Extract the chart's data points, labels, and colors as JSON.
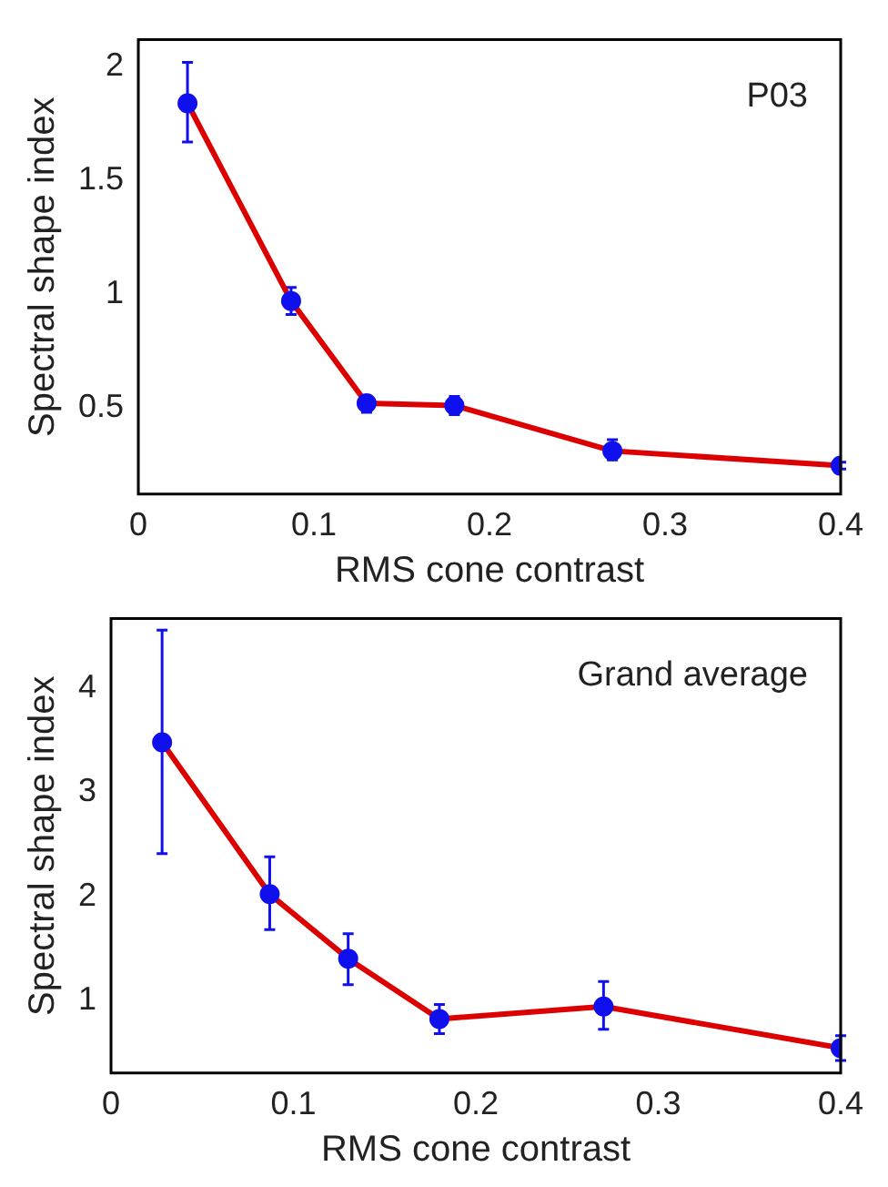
{
  "chart_data": [
    {
      "type": "line",
      "xlabel": "RMS cone contrast",
      "ylabel": "Spectral shape index",
      "annotations": [
        "P03"
      ],
      "x": [
        0.028,
        0.087,
        0.13,
        0.18,
        0.27,
        0.4
      ],
      "xlim": [
        0,
        0.4
      ],
      "xticks": [
        0,
        0.1,
        0.2,
        0.3,
        0.4
      ],
      "ylim": [
        0.12,
        2.12
      ],
      "yticks": [
        0.5,
        1,
        1.5,
        2
      ],
      "marker": "circle",
      "legend": false,
      "series": [
        {
          "color": "#dd0000",
          "values": [
            1.84,
            0.97,
            0.52,
            0.51,
            0.31,
            0.245
          ],
          "errors": [
            [
              1.67,
              2.02
            ],
            [
              0.91,
              1.03
            ],
            [
              0.48,
              0.55
            ],
            [
              0.47,
              0.55
            ],
            [
              0.27,
              0.36
            ],
            [
              0.23,
              0.26
            ]
          ]
        }
      ]
    },
    {
      "type": "line",
      "xlabel": "RMS cone contrast",
      "ylabel": "Spectral shape index",
      "annotations": [
        "Grand average"
      ],
      "x": [
        0.028,
        0.087,
        0.13,
        0.18,
        0.27,
        0.4
      ],
      "xlim": [
        0,
        0.4
      ],
      "xticks": [
        0,
        0.1,
        0.2,
        0.3,
        0.4
      ],
      "ylim": [
        0.3,
        4.67
      ],
      "yticks": [
        1,
        2,
        3,
        4
      ],
      "marker": "circle",
      "legend": false,
      "series": [
        {
          "color": "#dd0000",
          "values": [
            3.48,
            2.02,
            1.4,
            0.82,
            0.94,
            0.54
          ],
          "errors": [
            [
              2.41,
              4.56
            ],
            [
              1.68,
              2.38
            ],
            [
              1.15,
              1.64
            ],
            [
              0.68,
              0.96
            ],
            [
              0.72,
              1.18
            ],
            [
              0.42,
              0.66
            ]
          ]
        }
      ]
    }
  ]
}
